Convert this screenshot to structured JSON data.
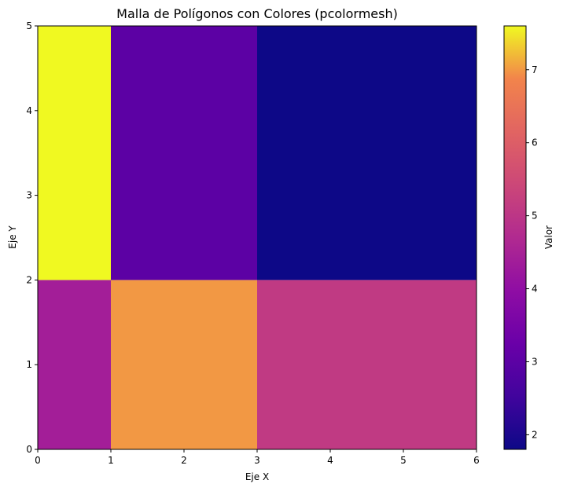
{
  "chart_data": {
    "type": "heatmap",
    "title": "Malla de Polígonos con Colores (pcolormesh)",
    "xlabel": "Eje X",
    "ylabel": "Eje Y",
    "colorbar_label": "Valor",
    "colormap": "plasma",
    "x_edges": [
      0,
      1,
      3,
      6
    ],
    "y_edges": [
      0,
      2,
      5
    ],
    "values": [
      [
        4.4,
        7.0,
        5.1
      ],
      [
        7.6,
        3.0,
        1.8
      ]
    ],
    "xlim": [
      0,
      6
    ],
    "ylim": [
      0,
      5
    ],
    "clim": [
      1.8,
      7.6
    ],
    "x_ticks": [
      "0",
      "1",
      "2",
      "3",
      "4",
      "5",
      "6"
    ],
    "y_ticks": [
      "0",
      "1",
      "2",
      "3",
      "4",
      "5"
    ],
    "colorbar_ticks": [
      "2",
      "3",
      "4",
      "5",
      "6",
      "7"
    ],
    "grid": false
  }
}
